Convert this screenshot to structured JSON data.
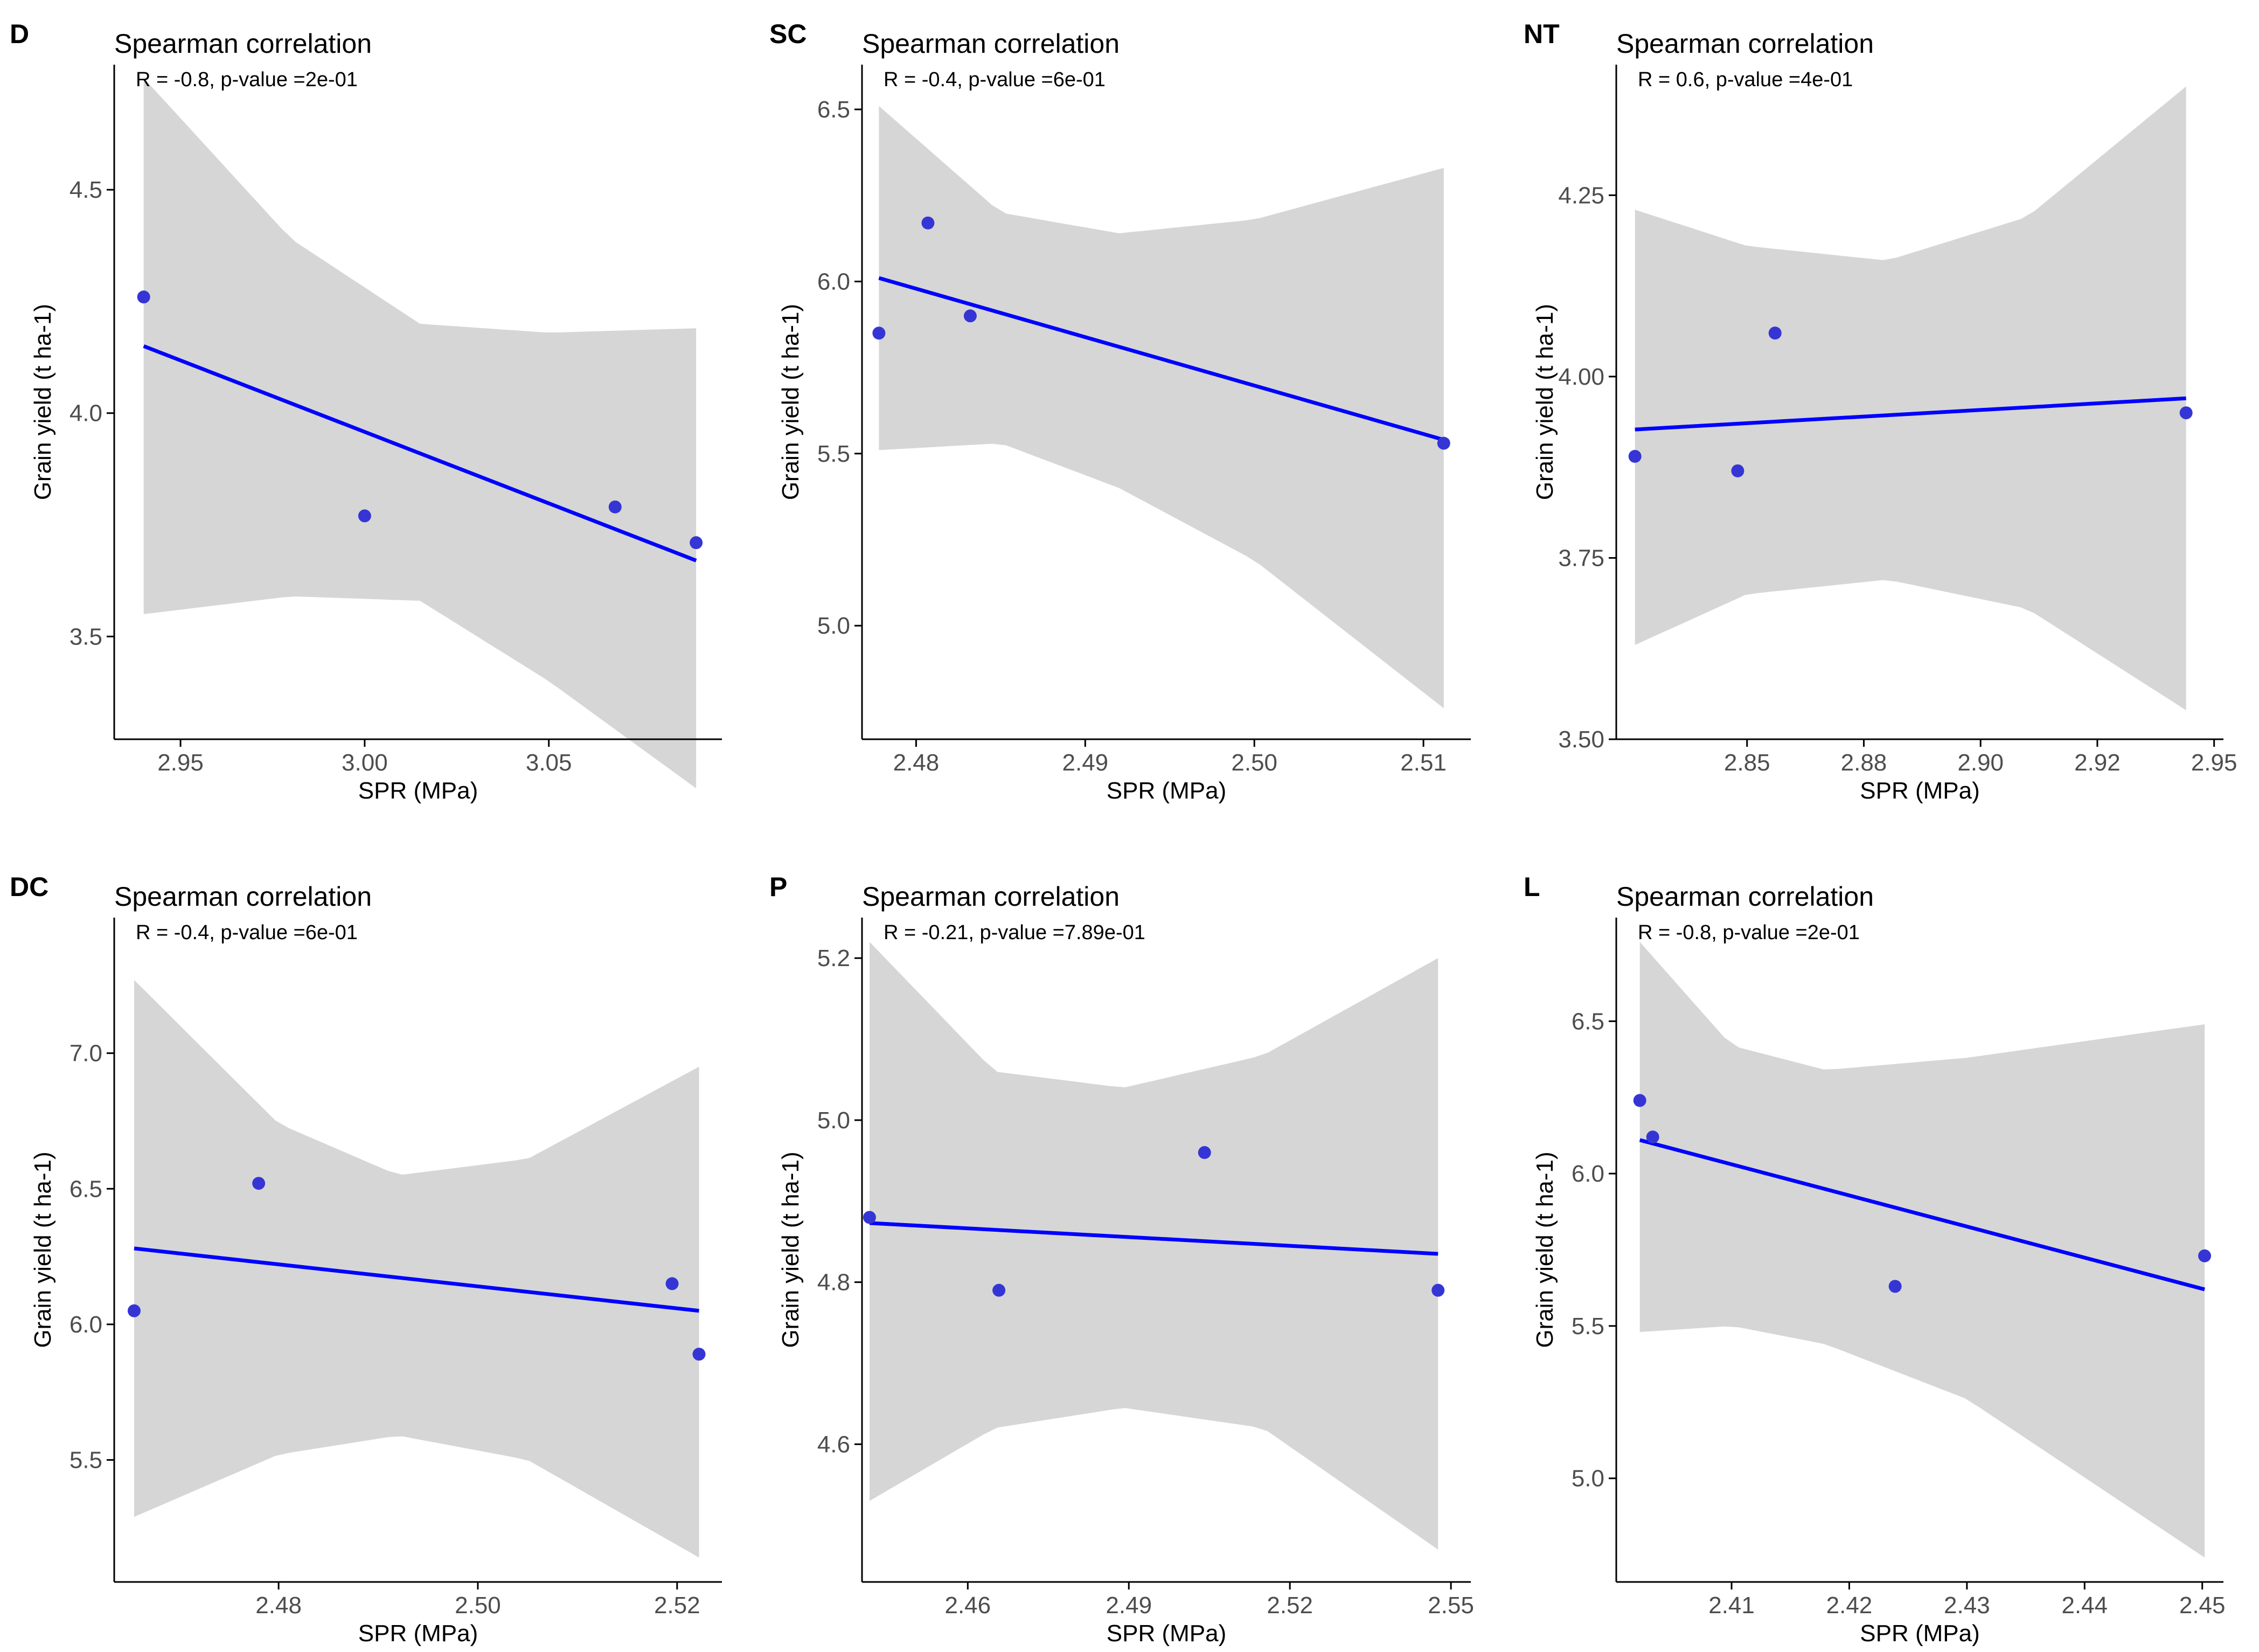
{
  "figure": {
    "colors": {
      "point": "#3535d6",
      "line": "#0000ff",
      "band": "#d6d6d6",
      "axis": "#000000",
      "tick_text": "#4d4d4d"
    }
  },
  "chart_data": [
    {
      "type": "scatter",
      "tag": "D",
      "title": "Spearman correlation",
      "annotation": "R = -0.8, p-value =2e-01",
      "xlabel": "SPR (MPa)",
      "ylabel": "Grain yield (t ha-1)",
      "xlim": [
        2.932,
        3.097
      ],
      "ylim": [
        3.27,
        4.78
      ],
      "xticks": [
        2.95,
        3.0,
        3.05
      ],
      "xtick_labels": [
        "2.95",
        "3.00",
        "3.05"
      ],
      "yticks": [
        3.5,
        4.0,
        4.5
      ],
      "ytick_labels": [
        "3.5",
        "4.0",
        "4.5"
      ],
      "points": [
        [
          2.94,
          4.26
        ],
        [
          3.0,
          3.77
        ],
        [
          3.068,
          3.79
        ],
        [
          3.09,
          3.71
        ]
      ],
      "fit": {
        "x": [
          2.94,
          3.09
        ],
        "y": [
          4.15,
          3.67
        ]
      },
      "band": {
        "x": [
          2.94,
          2.98,
          3.015,
          3.05,
          3.09
        ],
        "upper": [
          4.75,
          4.39,
          4.2,
          4.18,
          4.19
        ],
        "lower": [
          3.55,
          3.59,
          3.58,
          3.4,
          3.16
        ]
      }
    },
    {
      "type": "scatter",
      "tag": "SC",
      "title": "Spearman correlation",
      "annotation": "R = -0.4, p-value =6e-01",
      "xlabel": "SPR (MPa)",
      "ylabel": "Grain yield (t ha-1)",
      "xlim": [
        2.4768,
        2.5128
      ],
      "ylim": [
        4.67,
        6.63
      ],
      "xticks": [
        2.48,
        2.49,
        2.5,
        2.51
      ],
      "xtick_labels": [
        "2.48",
        "2.49",
        "2.50",
        "2.51"
      ],
      "yticks": [
        5.0,
        5.5,
        6.0,
        6.5
      ],
      "ytick_labels": [
        "5.0",
        "5.5",
        "6.0",
        "6.5"
      ],
      "points": [
        [
          2.4778,
          5.85
        ],
        [
          2.4807,
          6.17
        ],
        [
          2.4832,
          5.9
        ],
        [
          2.5112,
          5.53
        ]
      ],
      "fit": {
        "x": [
          2.4778,
          2.5112
        ],
        "y": [
          6.01,
          5.54
        ]
      },
      "band": {
        "x": [
          2.4778,
          2.485,
          2.492,
          2.5,
          2.5112
        ],
        "upper": [
          6.51,
          6.2,
          6.14,
          6.18,
          6.33
        ],
        "lower": [
          5.51,
          5.53,
          5.4,
          5.19,
          4.76
        ]
      }
    },
    {
      "type": "scatter",
      "tag": "NT",
      "title": "Spearman correlation",
      "annotation": "R = 0.6, p-value =4e-01",
      "xlabel": "SPR (MPa)",
      "ylabel": "Grain yield (t ha-1)",
      "xlim": [
        2.822,
        2.952
      ],
      "ylim": [
        3.5,
        4.43
      ],
      "xticks": [
        2.85,
        2.875,
        2.9,
        2.925,
        2.95
      ],
      "xtick_labels": [
        "2.85",
        "2.88",
        "2.90",
        "2.92",
        "2.95"
      ],
      "yticks": [
        3.5,
        3.75,
        4.0,
        4.25
      ],
      "ytick_labels": [
        "3.50",
        "3.75",
        "4.00",
        "4.25"
      ],
      "points": [
        [
          2.826,
          3.89
        ],
        [
          2.848,
          3.87
        ],
        [
          2.856,
          4.06
        ],
        [
          2.944,
          3.95
        ]
      ],
      "fit": {
        "x": [
          2.826,
          2.944
        ],
        "y": [
          3.927,
          3.97
        ]
      },
      "band": {
        "x": [
          2.826,
          2.85,
          2.88,
          2.91,
          2.944
        ],
        "upper": [
          4.23,
          4.18,
          4.16,
          4.22,
          4.4
        ],
        "lower": [
          3.63,
          3.7,
          3.72,
          3.68,
          3.54
        ]
      }
    },
    {
      "type": "scatter",
      "tag": "DC",
      "title": "Spearman correlation",
      "annotation": "R = -0.4, p-value =6e-01",
      "xlabel": "SPR (MPa)",
      "ylabel": "Grain yield (t ha-1)",
      "xlim": [
        2.4635,
        2.5245
      ],
      "ylim": [
        5.05,
        7.5
      ],
      "xticks": [
        2.48,
        2.5,
        2.52
      ],
      "xtick_labels": [
        "2.48",
        "2.50",
        "2.52"
      ],
      "yticks": [
        5.5,
        6.0,
        6.5,
        7.0
      ],
      "ytick_labels": [
        "5.5",
        "6.0",
        "6.5",
        "7.0"
      ],
      "points": [
        [
          2.4655,
          6.05
        ],
        [
          2.478,
          6.52
        ],
        [
          2.5195,
          6.15
        ],
        [
          2.5222,
          5.89
        ]
      ],
      "fit": {
        "x": [
          2.4655,
          2.5222
        ],
        "y": [
          6.28,
          6.05
        ]
      },
      "band": {
        "x": [
          2.4655,
          2.48,
          2.492,
          2.505,
          2.5222
        ],
        "upper": [
          7.27,
          6.74,
          6.55,
          6.61,
          6.95
        ],
        "lower": [
          5.29,
          5.52,
          5.59,
          5.5,
          5.14
        ]
      }
    },
    {
      "type": "scatter",
      "tag": "P",
      "title": "Spearman correlation",
      "annotation": "R = -0.21, p-value =7.89e-01",
      "xlabel": "SPR (MPa)",
      "ylabel": "Grain yield (t ha-1)",
      "xlim": [
        2.4403,
        2.5537
      ],
      "ylim": [
        4.43,
        5.25
      ],
      "xticks": [
        2.46,
        2.49,
        2.52,
        2.55
      ],
      "xtick_labels": [
        "2.46",
        "2.49",
        "2.52",
        "2.55"
      ],
      "yticks": [
        4.6,
        4.8,
        5.0,
        5.2
      ],
      "ytick_labels": [
        "4.6",
        "4.8",
        "5.0",
        "5.2"
      ],
      "points": [
        [
          2.4417,
          4.88
        ],
        [
          2.4658,
          4.79
        ],
        [
          2.5041,
          4.96
        ],
        [
          2.5476,
          4.79
        ]
      ],
      "fit": {
        "x": [
          2.4417,
          2.5476
        ],
        "y": [
          4.873,
          4.835
        ]
      },
      "band": {
        "x": [
          2.4417,
          2.465,
          2.489,
          2.515,
          2.5476
        ],
        "upper": [
          5.22,
          5.06,
          5.04,
          5.08,
          5.2
        ],
        "lower": [
          4.53,
          4.62,
          4.645,
          4.62,
          4.47
        ]
      }
    },
    {
      "type": "scatter",
      "tag": "L",
      "title": "Spearman correlation",
      "annotation": "R = -0.8, p-value =2e-01",
      "xlabel": "SPR (MPa)",
      "ylabel": "Grain yield (t ha-1)",
      "xlim": [
        2.4002,
        2.4518
      ],
      "ylim": [
        4.66,
        6.84
      ],
      "xticks": [
        2.41,
        2.42,
        2.43,
        2.44,
        2.45
      ],
      "xtick_labels": [
        "2.41",
        "2.42",
        "2.43",
        "2.44",
        "2.45"
      ],
      "yticks": [
        5.0,
        5.5,
        6.0,
        6.5
      ],
      "ytick_labels": [
        "5.0",
        "5.5",
        "6.0",
        "6.5"
      ],
      "points": [
        [
          2.4022,
          6.24
        ],
        [
          2.4033,
          6.12
        ],
        [
          2.4239,
          5.63
        ],
        [
          2.4502,
          5.73
        ]
      ],
      "fit": {
        "x": [
          2.4022,
          2.4502
        ],
        "y": [
          6.11,
          5.62
        ]
      },
      "band": {
        "x": [
          2.4022,
          2.41,
          2.418,
          2.43,
          2.4502
        ],
        "upper": [
          6.76,
          6.42,
          6.34,
          6.38,
          6.49
        ],
        "lower": [
          5.48,
          5.5,
          5.44,
          5.26,
          4.74
        ]
      }
    }
  ]
}
